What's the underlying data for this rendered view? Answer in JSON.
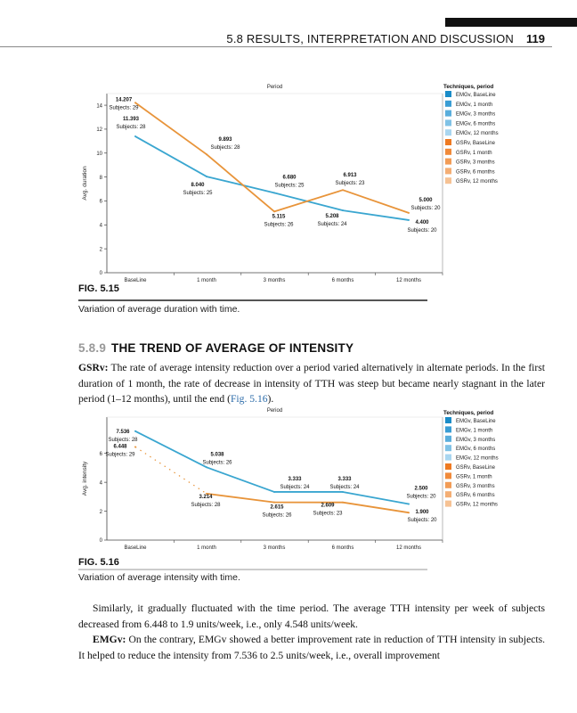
{
  "header": {
    "section": "5.8 RESULTS, INTERPRETATION AND DISCUSSION",
    "page_number": "119"
  },
  "figures": [
    {
      "label": "FIG. 5.15",
      "caption": "Variation of average duration with time."
    },
    {
      "label": "FIG. 5.16",
      "caption": "Variation of average intensity with time."
    }
  ],
  "section": {
    "number": "5.8.9",
    "title": "THE TREND OF AVERAGE OF INTENSITY"
  },
  "paragraphs": {
    "p1_lead": "GSRv:",
    "p1_text": " The rate of average intensity reduction over a period varied alternatively in alternate periods. In the first duration of 1 month, the rate of decrease in intensity of TTH was steep but became nearly stagnant in the later period (1–12 months), until the end (",
    "p1_link": "Fig. 5.16",
    "p1_end": ").",
    "p2_text": "Similarly, it gradually fluctuated with the time period. The average TTH intensity per week of subjects decreased from 6.448 to 1.9 units/week, i.e., only 4.548 units/week.",
    "p3_lead": "EMGv:",
    "p3_text": " On the contrary, EMGv showed a better improvement rate in reduction of TTH intensity in subjects. It helped to reduce the intensity from 7.536 to 2.5 units/week, i.e., overall improvement"
  },
  "colors": {
    "emgv_line": "#3aa6d0",
    "gsrv_line": "#e8943a"
  },
  "chart_data": [
    {
      "type": "line",
      "title": "Period",
      "xlabel": "",
      "ylabel": "Avg. duration",
      "categories": [
        "BaseLine",
        "1 month",
        "3 months",
        "6 months",
        "12 months"
      ],
      "ylim": [
        0,
        14
      ],
      "yticks": [
        0,
        2,
        4,
        6,
        8,
        10,
        12,
        14
      ],
      "grid": false,
      "legend_position": "right",
      "legend_title": "Techniques, period",
      "legend": [
        {
          "label": "EMGv, BaseLine",
          "color": "#1a8cc8"
        },
        {
          "label": "EMGv, 1 month",
          "color": "#3a9dd4"
        },
        {
          "label": "EMGv, 3 months",
          "color": "#5aaedc"
        },
        {
          "label": "EMGv, 6 months",
          "color": "#80c2e6"
        },
        {
          "label": "EMGv, 12 months",
          "color": "#a9d6f0"
        },
        {
          "label": "GSRv, BaseLine",
          "color": "#ee7a22"
        },
        {
          "label": "GSRv, 1 month",
          "color": "#f08a3a"
        },
        {
          "label": "GSRv, 3 months",
          "color": "#f29c56"
        },
        {
          "label": "GSRv, 6 months",
          "color": "#f4ae74"
        },
        {
          "label": "GSRv, 12 months",
          "color": "#f6c294"
        }
      ],
      "series": [
        {
          "name": "EMGv",
          "values": [
            11.393,
            8.04,
            6.68,
            5.208,
            4.4
          ],
          "labels": [
            "11.393",
            "8.040",
            "6.680",
            "5.208",
            "4.400"
          ],
          "subjects": [
            "Subjects: 28",
            "Subjects: 25",
            "Subjects: 25",
            "Subjects: 24",
            "Subjects: 20"
          ]
        },
        {
          "name": "GSRv",
          "values": [
            14.207,
            9.893,
            5.115,
            6.913,
            5.0
          ],
          "labels": [
            "14.207",
            "9.893",
            "5.115",
            "6.913",
            "5.000"
          ],
          "subjects": [
            "Subjects: 29",
            "Subjects: 28",
            "Subjects: 26",
            "Subjects: 23",
            "Subjects: 20"
          ]
        }
      ]
    },
    {
      "type": "line",
      "title": "Period",
      "xlabel": "",
      "ylabel": "Avg. intensity",
      "categories": [
        "BaseLine",
        "1 month",
        "3 months",
        "6 months",
        "12 months"
      ],
      "ylim": [
        0,
        8
      ],
      "yticks": [
        0,
        2,
        4,
        6
      ],
      "grid": false,
      "legend_position": "right",
      "legend_title": "Techniques, period",
      "legend": [
        {
          "label": "EMGv, BaseLine",
          "color": "#1a8cc8"
        },
        {
          "label": "EMGv, 1 month",
          "color": "#3a9dd4"
        },
        {
          "label": "EMGv, 3 months",
          "color": "#5aaedc"
        },
        {
          "label": "EMGv, 6 months",
          "color": "#80c2e6"
        },
        {
          "label": "EMGv, 12 months",
          "color": "#a9d6f0"
        },
        {
          "label": "GSRv, BaseLine",
          "color": "#ee7a22"
        },
        {
          "label": "GSRv, 1 month",
          "color": "#f08a3a"
        },
        {
          "label": "GSRv, 3 months",
          "color": "#f29c56"
        },
        {
          "label": "GSRv, 6 months",
          "color": "#f4ae74"
        },
        {
          "label": "GSRv, 12 months",
          "color": "#f6c294"
        }
      ],
      "series": [
        {
          "name": "EMGv",
          "values": [
            7.536,
            5.038,
            3.333,
            3.333,
            2.5
          ],
          "labels": [
            "7.536",
            "5.038",
            "3.333",
            "3.333",
            "2.500"
          ],
          "subjects": [
            "Subjects: 28",
            "Subjects: 26",
            "Subjects: 24",
            "Subjects: 24",
            "Subjects: 20"
          ]
        },
        {
          "name": "GSRv",
          "values": [
            6.448,
            3.214,
            2.615,
            2.609,
            1.9
          ],
          "labels": [
            "6.448",
            "3.214",
            "2.615",
            "2.609",
            "1.900"
          ],
          "subjects": [
            "Subjects: 29",
            "Subjects: 28",
            "Subjects: 26",
            "Subjects: 23",
            "Subjects: 20"
          ]
        }
      ]
    }
  ]
}
